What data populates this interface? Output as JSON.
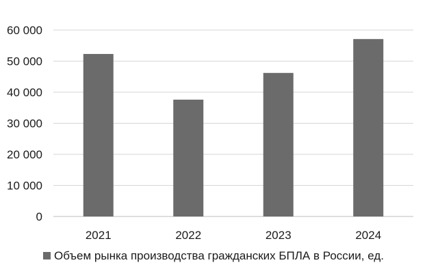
{
  "chart_data": {
    "type": "bar",
    "categories": [
      "2021",
      "2022",
      "2023",
      "2024"
    ],
    "series": [
      {
        "name": "Объем рынка производства гражданских БПЛА в России, ед.",
        "values": [
          52300,
          37600,
          46200,
          57100
        ]
      }
    ],
    "ylim": [
      0,
      60000
    ],
    "yticks": [
      "0",
      "10 000",
      "20 000",
      "30 000",
      "40 000",
      "50 000",
      "60 000"
    ],
    "grid": true,
    "legend_position": "bottom",
    "colors": {
      "bar": "#6b6b6b",
      "grid": "#d6d6d6",
      "axis": "#bdbdbd"
    }
  }
}
